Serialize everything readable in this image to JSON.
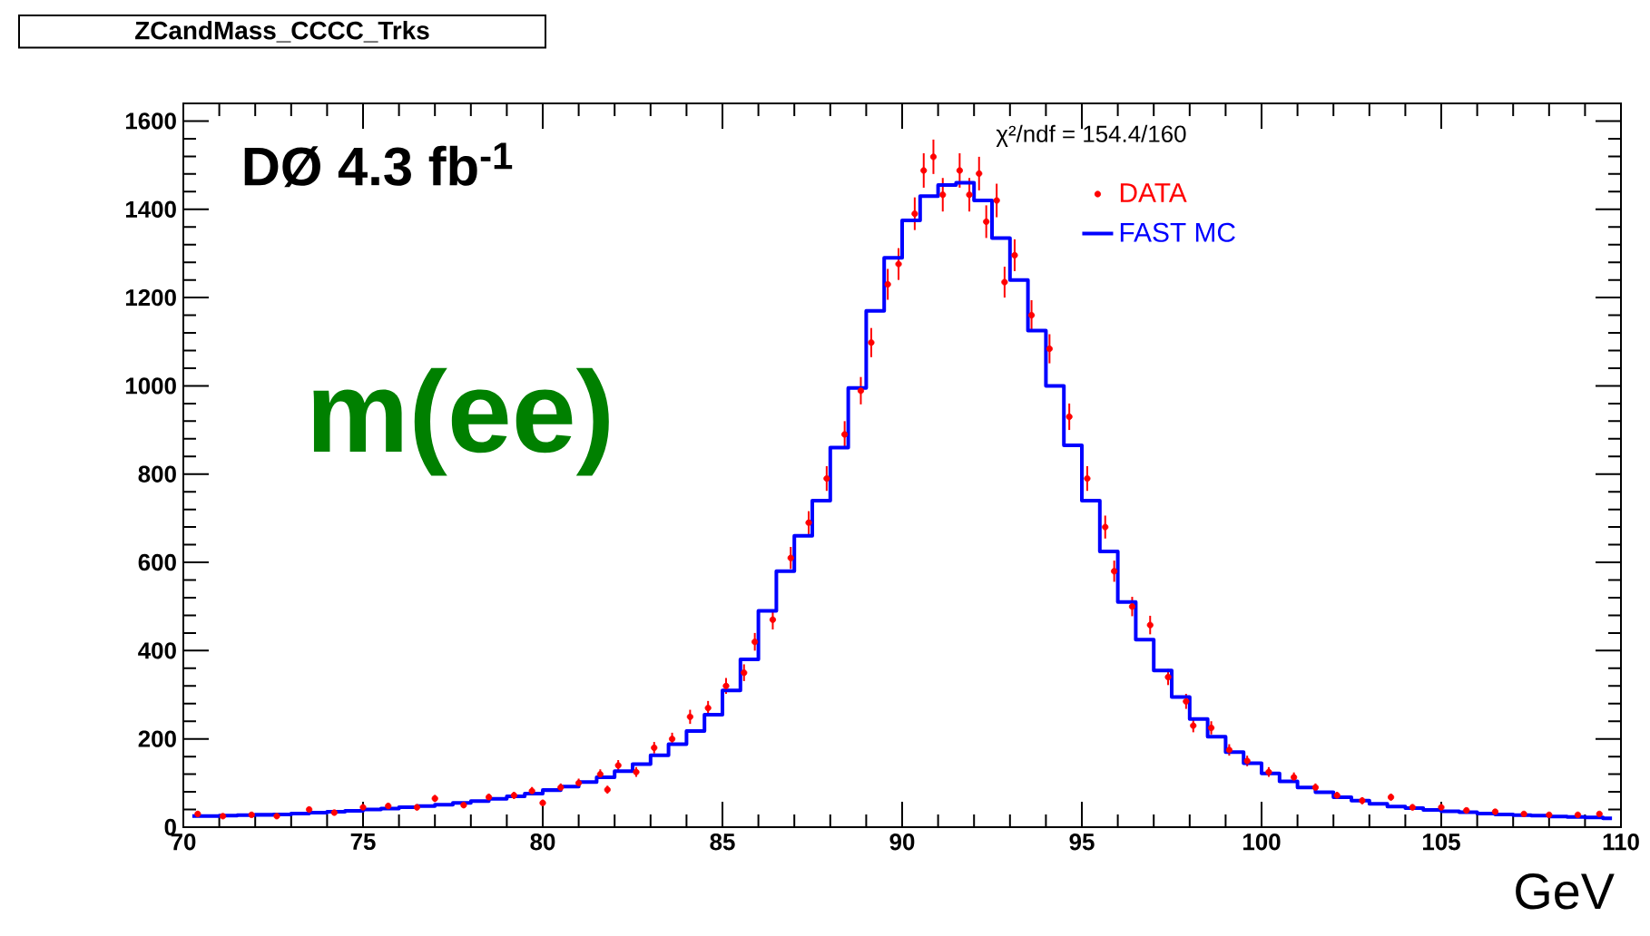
{
  "chart_data": {
    "type": "step",
    "title": "ZCandMass_CCCC_Trks",
    "xlabel": "GeV",
    "annotations": [
      "χ²/ndf = 154.4/160",
      "DØ 4.3 fb$^{-1}$",
      "m(ee)"
    ],
    "xlim": [
      70,
      110
    ],
    "xticks": [
      70,
      75,
      80,
      85,
      90,
      95,
      100,
      105,
      110
    ],
    "ylim": [
      0,
      1640
    ],
    "yticks": [
      0,
      200,
      400,
      600,
      800,
      1000,
      1200,
      1400,
      1600
    ],
    "grid": false,
    "legend": "top right",
    "series": [
      {
        "name": "DATA",
        "type": "scatter",
        "marker": "circle",
        "color": "#ff0000",
        "x": [
          70.4,
          71.1,
          71.9,
          72.6,
          73.5,
          74.2,
          75,
          75.7,
          76.5,
          77,
          77.8,
          78.5,
          79.2,
          79.7,
          80,
          80.5,
          81,
          81.6,
          81.8,
          82.1,
          82.6,
          83.1,
          83.6,
          84.1,
          84.6,
          85.1,
          85.6,
          85.9,
          86.4,
          86.9,
          87.4,
          87.9,
          88.4,
          88.85,
          89.14,
          89.6,
          89.9,
          90.35,
          90.6,
          90.87,
          91.13,
          91.6,
          91.87,
          92.14,
          92.34,
          92.63,
          92.85,
          93.13,
          93.6,
          94.1,
          94.65,
          95.15,
          95.65,
          95.9,
          96.4,
          96.9,
          97.4,
          97.9,
          98.1,
          98.6,
          99.1,
          99.6,
          100.2,
          100.9,
          101.5,
          102.1,
          102.8,
          103.6,
          104.2,
          105,
          105.7,
          106.5,
          107.3,
          108,
          108.8,
          109.4
        ],
        "values": [
          30,
          25,
          28,
          25,
          40,
          33,
          45,
          48,
          45,
          65,
          50,
          68,
          72,
          82,
          55,
          90,
          100,
          120,
          85,
          140,
          125,
          180,
          200,
          250,
          270,
          320,
          350,
          420,
          470,
          610,
          690,
          790,
          890,
          989,
          1098,
          1230,
          1276,
          1390,
          1488,
          1519,
          1433,
          1488,
          1433,
          1481,
          1372,
          1420,
          1235,
          1296,
          1160,
          1084,
          930,
          790,
          680,
          580,
          500,
          458,
          340,
          285,
          230,
          225,
          175,
          150,
          125,
          113,
          90,
          72,
          60,
          68,
          45,
          45,
          38,
          35,
          30,
          28,
          28,
          30
        ],
        "errors": [
          6,
          5,
          5,
          5,
          6,
          6,
          7,
          7,
          7,
          8,
          7,
          8,
          8,
          9,
          7,
          9,
          10,
          11,
          9,
          12,
          11,
          13,
          14,
          16,
          16,
          18,
          19,
          20,
          22,
          25,
          26,
          28,
          30,
          31,
          33,
          35,
          36,
          37,
          39,
          39,
          38,
          39,
          38,
          38,
          37,
          38,
          35,
          36,
          34,
          33,
          30,
          28,
          26,
          24,
          22,
          21,
          18,
          17,
          15,
          15,
          13,
          12,
          11,
          11,
          9,
          8,
          8,
          8,
          7,
          7,
          6,
          6,
          5,
          5,
          5,
          5
        ]
      },
      {
        "name": "FAST MC",
        "marker": "none",
        "color": "#0000ff",
        "x": [
          70.25,
          70.75,
          71.25,
          71.75,
          72.25,
          72.75,
          73.25,
          73.75,
          74.25,
          74.75,
          75.25,
          75.75,
          76.25,
          76.75,
          77.25,
          77.75,
          78.25,
          78.75,
          79.25,
          79.75,
          80.25,
          80.75,
          81.25,
          81.75,
          82.25,
          82.75,
          83.25,
          83.75,
          84.25,
          84.75,
          85.25,
          85.75,
          86.25,
          86.75,
          87.25,
          87.75,
          88.25,
          88.75,
          89.25,
          89.75,
          90.25,
          90.75,
          91.25,
          91.75,
          92.25,
          92.75,
          93.25,
          93.75,
          94.25,
          94.75,
          95.25,
          95.75,
          96.25,
          96.75,
          97.25,
          97.75,
          98.25,
          98.75,
          99.25,
          99.75,
          100.25,
          100.75,
          101.25,
          101.75,
          102.25,
          102.75,
          103.25,
          103.75,
          104.25,
          104.75,
          105.25,
          105.75,
          106.25,
          106.75,
          107.25,
          107.75,
          108.25,
          108.75,
          109.25,
          109.75
        ],
        "values": [
          25,
          25,
          26,
          27,
          28,
          29,
          31,
          33,
          35,
          37,
          40,
          42,
          45,
          48,
          51,
          55,
          59,
          64,
          70,
          76,
          84,
          92,
          102,
          113,
          127,
          143,
          163,
          188,
          218,
          255,
          310,
          380,
          490,
          580,
          660,
          740,
          860,
          995,
          1170,
          1290,
          1375,
          1430,
          1455,
          1460,
          1420,
          1335,
          1240,
          1125,
          1000,
          865,
          740,
          625,
          510,
          425,
          355,
          295,
          245,
          205,
          170,
          145,
          122,
          104,
          90,
          79,
          68,
          60,
          53,
          47,
          43,
          39,
          36,
          34,
          31,
          29,
          27,
          26,
          24,
          23,
          22,
          20
        ]
      }
    ]
  }
}
